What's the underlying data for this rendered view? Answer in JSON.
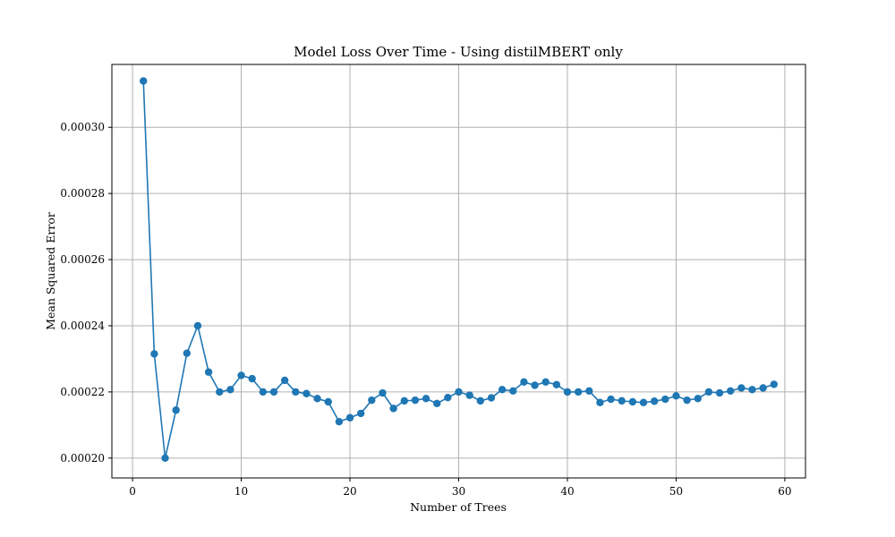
{
  "chart_data": {
    "type": "line",
    "title": "Model Loss Over Time - Using distilMBERT only",
    "xlabel": "Number of Trees",
    "ylabel": "Mean Squared Error",
    "xlim": [
      -1.9,
      61.9
    ],
    "ylim": [
      0.000194,
      0.000319
    ],
    "xticks": [
      0,
      10,
      20,
      30,
      40,
      50,
      60
    ],
    "xtick_labels": [
      "0",
      "10",
      "20",
      "30",
      "40",
      "50",
      "60"
    ],
    "yticks": [
      0.0002,
      0.00022,
      0.00024,
      0.00026,
      0.00028,
      0.0003
    ],
    "ytick_labels": [
      "0.00020",
      "0.00022",
      "0.00024",
      "0.00026",
      "0.00028",
      "0.00030"
    ],
    "grid": true,
    "color": "#1f77b4",
    "series": [
      {
        "x": [
          1,
          2,
          3,
          4,
          5,
          6,
          7,
          8,
          9,
          10,
          11,
          12,
          13,
          14,
          15,
          16,
          17,
          18,
          19,
          20,
          21,
          22,
          23,
          24,
          25,
          26,
          27,
          28,
          29,
          30,
          31,
          32,
          33,
          34,
          35,
          36,
          37,
          38,
          39,
          40,
          41,
          42,
          43,
          44,
          45,
          46,
          47,
          48,
          49,
          50,
          51,
          52,
          53,
          54,
          55,
          56,
          57,
          58,
          59
        ],
        "values": [
          0.000314,
          0.0002315,
          0.0002,
          0.0002145,
          0.0002317,
          0.00024,
          0.000226,
          0.00022,
          0.0002207,
          0.000225,
          0.000224,
          0.00022,
          0.00022,
          0.0002235,
          0.00022,
          0.0002195,
          0.000218,
          0.000217,
          0.000211,
          0.0002122,
          0.0002135,
          0.0002175,
          0.0002197,
          0.000215,
          0.0002173,
          0.0002175,
          0.000218,
          0.0002165,
          0.0002183,
          0.00022,
          0.000219,
          0.0002173,
          0.0002182,
          0.0002207,
          0.0002203,
          0.000223,
          0.000222,
          0.000223,
          0.0002222,
          0.00022,
          0.00022,
          0.0002203,
          0.0002168,
          0.0002178,
          0.0002173,
          0.000217,
          0.0002168,
          0.0002172,
          0.0002178,
          0.0002188,
          0.0002175,
          0.000218,
          0.00022,
          0.0002197,
          0.0002203,
          0.0002212,
          0.0002207,
          0.0002212,
          0.0002223
        ]
      }
    ]
  }
}
